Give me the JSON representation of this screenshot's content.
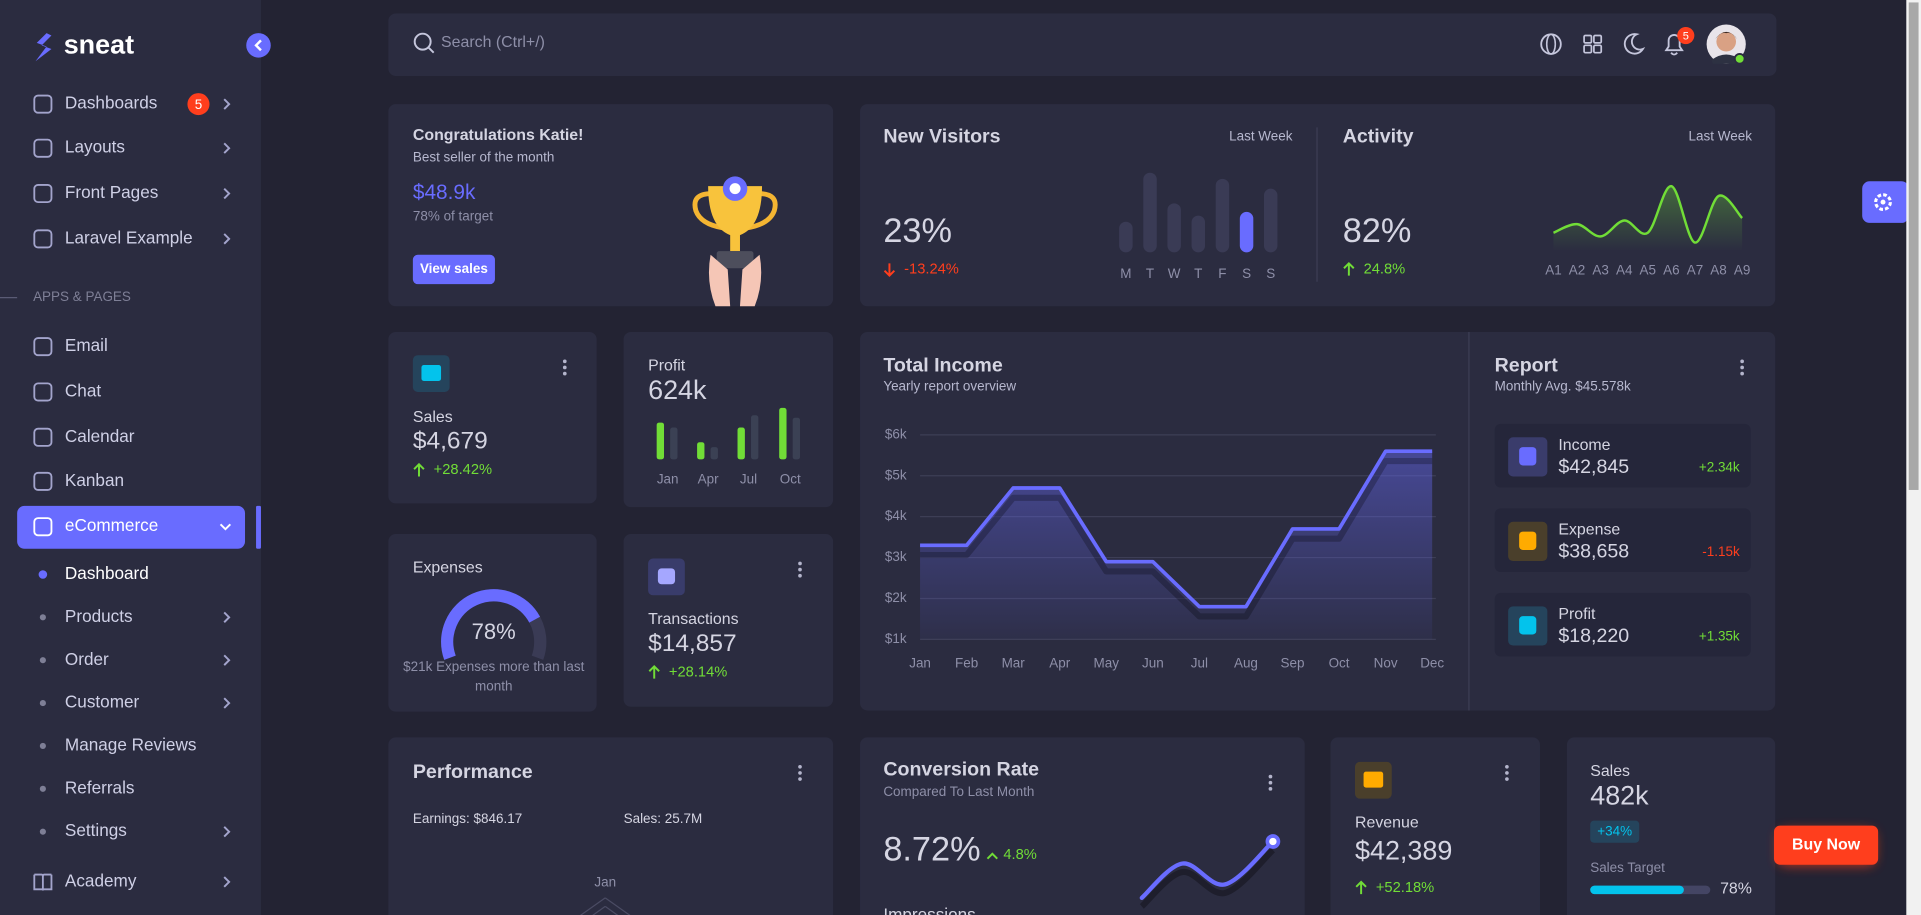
{
  "sidebar": {
    "brand": "sneat",
    "menu": [
      {
        "label": "Dashboards",
        "badge": 5
      },
      {
        "label": "Layouts"
      },
      {
        "label": "Front Pages"
      },
      {
        "label": "Laravel Example"
      }
    ],
    "section": "APPS & PAGES",
    "apps": [
      "Email",
      "Chat",
      "Calendar",
      "Kanban"
    ],
    "active": "eCommerce",
    "submenu": [
      "Dashboard",
      "Products",
      "Order",
      "Customer",
      "Manage Reviews",
      "Referrals",
      "Settings"
    ],
    "footer_item": "Academy"
  },
  "topbar": {
    "search_placeholder": "Search (Ctrl+/)",
    "notification_count": 5
  },
  "congrats": {
    "title": "Congratulations Katie! ",
    "subtitle": "Best seller of the month",
    "amount": "$48.9k",
    "target": "78% of target",
    "button": "View sales"
  },
  "new_visitors": {
    "title": "New Visitors",
    "period": "Last Week",
    "value": "23%",
    "change": "-13.24%",
    "chart": {
      "type": "bar",
      "categories": [
        "M",
        "T",
        "W",
        "T",
        "F",
        "S",
        "S"
      ],
      "values": [
        25,
        65,
        40,
        30,
        60,
        33,
        52
      ],
      "highlight": 5
    }
  },
  "activity": {
    "title": "Activity",
    "period": "Last Week",
    "value": "82%",
    "change": "24.8%",
    "chart": {
      "type": "line",
      "categories": [
        "A1",
        "A2",
        "A3",
        "A4",
        "A5",
        "A6",
        "A7",
        "A8",
        "A9"
      ],
      "values": [
        10,
        17,
        7,
        20,
        10,
        48,
        2,
        40,
        22
      ]
    }
  },
  "sales": {
    "label": "Sales",
    "value": "$4,679",
    "change": "+28.42%"
  },
  "profit": {
    "label": "Profit",
    "value": "624k",
    "chart": {
      "type": "bar",
      "categories": [
        "Jan",
        "Apr",
        "Jul",
        "Oct"
      ],
      "series": [
        {
          "color": "#71dd37",
          "values": [
            30,
            14,
            26,
            42
          ]
        },
        {
          "color": "#3b4154",
          "values": [
            26,
            10,
            36,
            34
          ]
        }
      ]
    }
  },
  "expenses": {
    "label": "Expenses",
    "gauge": {
      "value": 78,
      "value_label": "78%"
    },
    "note": [
      "$21k Expenses more than last",
      "month"
    ]
  },
  "transactions": {
    "label": "Transactions",
    "value": "$14,857",
    "change": "+28.14%"
  },
  "total_income": {
    "title": "Total Income",
    "subtitle": "Yearly report overview",
    "chart": {
      "type": "area",
      "categories": [
        "Jan",
        "Feb",
        "Mar",
        "Apr",
        "May",
        "Jun",
        "Jul",
        "Aug",
        "Sep",
        "Oct",
        "Nov",
        "Dec"
      ],
      "values": [
        3.3,
        3.3,
        4.7,
        4.7,
        2.9,
        2.9,
        1.8,
        1.8,
        3.7,
        3.7,
        5.6,
        5.6
      ],
      "ylim": [
        1,
        6
      ],
      "yticks": [
        {
          "value": 1,
          "label": "$1k"
        },
        {
          "value": 2,
          "label": "$2k"
        },
        {
          "value": 3,
          "label": "$3k"
        },
        {
          "value": 4,
          "label": "$4k"
        },
        {
          "value": 5,
          "label": "$5k"
        },
        {
          "value": 6,
          "label": "$6k"
        }
      ],
      "color": "#696cff",
      "grid": true
    }
  },
  "report": {
    "title": "Report",
    "subtitle": "Monthly Avg. $45.578k",
    "items": [
      {
        "label": "Income",
        "value": "$42,845",
        "change": "+2.34k"
      },
      {
        "label": "Expense",
        "value": "$38,658",
        "change": "-1.15k"
      },
      {
        "label": "Profit",
        "value": "$18,220",
        "change": "+1.35k"
      }
    ]
  },
  "performance": {
    "title": "Performance",
    "earnings": "Earnings: $846.17",
    "sales": "Sales: 25.7M",
    "radar_label": "Jan"
  },
  "conversion": {
    "title": "Conversion Rate",
    "subtitle": "Compared To Last Month",
    "value": "8.72%",
    "change": "4.8%",
    "sparkline": {
      "type": "line",
      "values": [
        14,
        42,
        25,
        60
      ]
    },
    "next_label": "Impressions"
  },
  "revenue": {
    "label": "Revenue",
    "value": "$42,389",
    "change": "+52.18%"
  },
  "sales_target": {
    "label": "Sales",
    "value": "482k",
    "badge": "+34%",
    "target_label": "Sales Target",
    "progress": {
      "value": 78,
      "value_label": "78%"
    }
  },
  "buy_button": "Buy Now"
}
